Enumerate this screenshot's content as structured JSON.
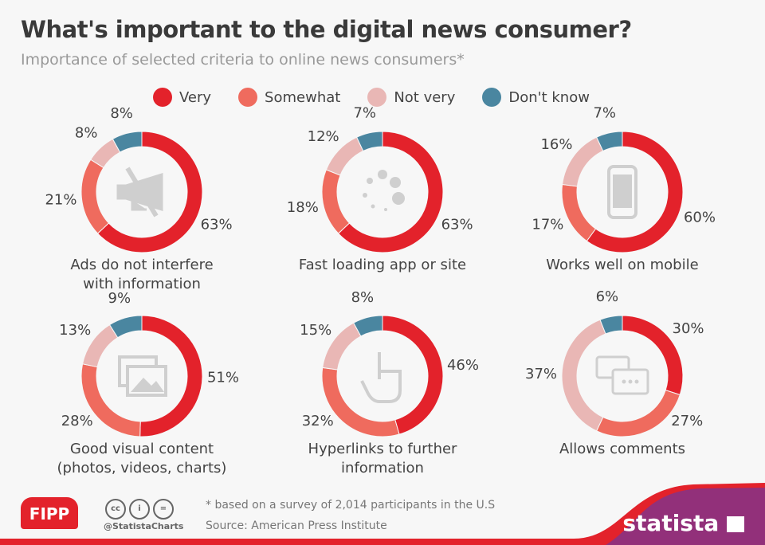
{
  "title": "What's important to the digital news consumer?",
  "subtitle": "Importance of selected criteria to online news consumers*",
  "colors": {
    "very": "#e3222b",
    "somewhat": "#ef6b5e",
    "not_very": "#e9b7b5",
    "dont_know": "#4a86a0",
    "icon": "#cfcfcf"
  },
  "chart_data": {
    "type": "pie",
    "variant": "donut",
    "legend": [
      "Very",
      "Somewhat",
      "Not very",
      "Don't know"
    ],
    "legend_position": "top",
    "charts": [
      {
        "caption": [
          "Ads do not interfere",
          "with information"
        ],
        "icon": "muted-megaphone-icon",
        "values": [
          63,
          21,
          8,
          8
        ]
      },
      {
        "caption": [
          "Fast loading app or site"
        ],
        "icon": "loading-spinner-icon",
        "values": [
          63,
          18,
          12,
          7
        ]
      },
      {
        "caption": [
          "Works well on mobile"
        ],
        "icon": "smartphone-icon",
        "values": [
          60,
          17,
          16,
          7
        ]
      },
      {
        "caption": [
          "Good visual content",
          "(photos, videos, charts)"
        ],
        "icon": "images-icon",
        "values": [
          51,
          28,
          13,
          9
        ]
      },
      {
        "caption": [
          "Hyperlinks to further",
          "information"
        ],
        "icon": "pointing-hand-icon",
        "values": [
          46,
          32,
          15,
          8
        ]
      },
      {
        "caption": [
          "Allows comments"
        ],
        "icon": "speech-bubbles-icon",
        "values": [
          30,
          27,
          37,
          6
        ]
      }
    ]
  },
  "footer": {
    "note": "* based on a survey of 2,014 participants in the U.S",
    "source": "Source: American Press Institute",
    "handle": "@StatistaCharts",
    "fipp": "FIPP",
    "brand": "statista",
    "cc": [
      "cc",
      "i",
      "="
    ]
  }
}
